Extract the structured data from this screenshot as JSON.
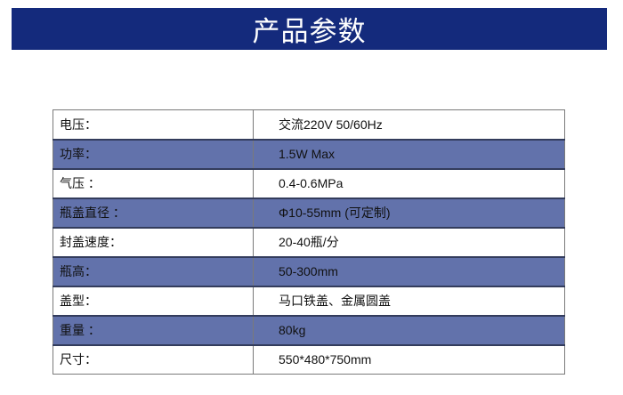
{
  "header": {
    "title": "产品参数"
  },
  "colors": {
    "banner": "#142a7c",
    "alt_row": "#6272ab"
  },
  "specs": [
    {
      "label": "电压：",
      "value": "交流220V 50/60Hz"
    },
    {
      "label": "功率：",
      "value": "1.5W Max"
    },
    {
      "label": "气压 ：",
      "value": "0.4-0.6MPa"
    },
    {
      "label": "瓶盖直径 ：",
      "value": "Φ10-55mm (可定制)"
    },
    {
      "label": "封盖速度：",
      "value": "20-40瓶/分"
    },
    {
      "label": "瓶高：",
      "value": "50-300mm"
    },
    {
      "label": "盖型：",
      "value": "马口铁盖、金属圆盖"
    },
    {
      "label": "重量 ：",
      "value": "80kg"
    },
    {
      "label": "尺寸：",
      "value": "550*480*750mm"
    }
  ]
}
